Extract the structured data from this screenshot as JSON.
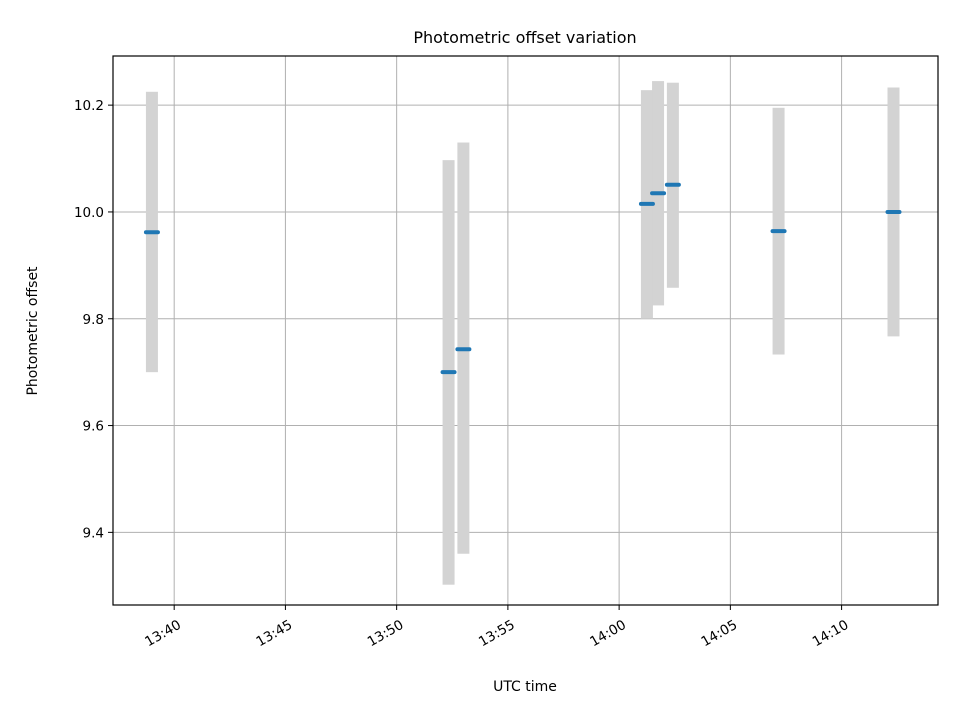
{
  "chart_data": {
    "type": "scatter",
    "title": "Photometric offset variation",
    "xlabel": "UTC time",
    "ylabel": "Photometric offset",
    "xlim": [
      "13:37:15",
      "14:14:20"
    ],
    "ylim": [
      9.264,
      10.292
    ],
    "x_ticks": [
      "13:40",
      "13:45",
      "13:50",
      "13:55",
      "14:00",
      "14:05",
      "14:10"
    ],
    "y_ticks": [
      "9.4",
      "9.6",
      "9.8",
      "10.0",
      "10.2"
    ],
    "grid": true,
    "colors": {
      "points": "#1f77b4",
      "error_bars": "#d3d3d3"
    },
    "points": [
      {
        "time": "13:39:00",
        "y": 9.962,
        "ymin": 9.7,
        "ymax": 10.225
      },
      {
        "time": "13:52:20",
        "y": 9.7,
        "ymin": 9.302,
        "ymax": 10.097
      },
      {
        "time": "13:53:00",
        "y": 9.743,
        "ymin": 9.36,
        "ymax": 10.13
      },
      {
        "time": "14:01:15",
        "y": 10.015,
        "ymin": 9.8,
        "ymax": 10.228
      },
      {
        "time": "14:01:45",
        "y": 10.035,
        "ymin": 9.825,
        "ymax": 10.245
      },
      {
        "time": "14:02:25",
        "y": 10.051,
        "ymin": 9.858,
        "ymax": 10.242
      },
      {
        "time": "14:07:10",
        "y": 9.964,
        "ymin": 9.733,
        "ymax": 10.195
      },
      {
        "time": "14:12:20",
        "y": 10.0,
        "ymin": 9.767,
        "ymax": 10.233
      }
    ]
  }
}
